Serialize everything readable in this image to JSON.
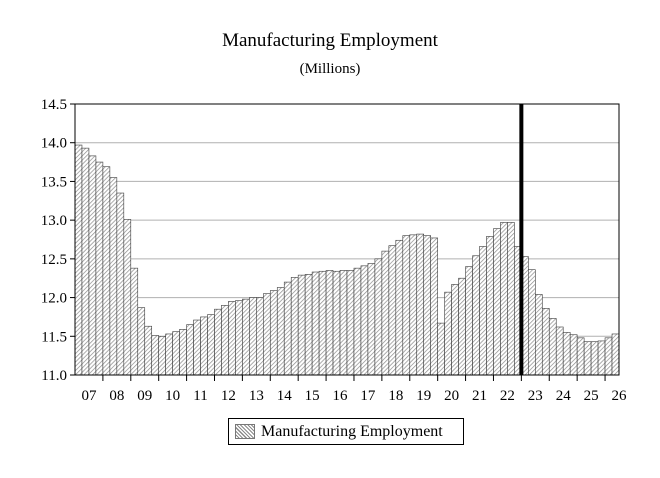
{
  "chart_data": {
    "type": "bar",
    "title": "Manufacturing Employment",
    "subtitle": "(Millions)",
    "xlabel": "",
    "ylabel": "",
    "ylim": [
      11.0,
      14.5
    ],
    "yticks": [
      "14.5",
      "14.0",
      "13.5",
      "13.0",
      "12.5",
      "12.0",
      "11.5",
      "11.0"
    ],
    "ytick_values": [
      14.5,
      14.0,
      13.5,
      13.0,
      12.5,
      12.0,
      11.5,
      11.0
    ],
    "xtick_labels": [
      "07",
      "08",
      "09",
      "10",
      "11",
      "12",
      "13",
      "14",
      "15",
      "16",
      "17",
      "18",
      "19",
      "20",
      "21",
      "22",
      "23",
      "24",
      "25",
      "26"
    ],
    "periods_per_year": 4,
    "grid": "horizontal",
    "legend_position": "bottom",
    "vertical_marker_index": 64,
    "series": [
      {
        "name": "Manufacturing Employment",
        "values": [
          13.97,
          13.93,
          13.83,
          13.75,
          13.69,
          13.55,
          13.35,
          13.01,
          12.38,
          11.87,
          11.63,
          11.51,
          11.5,
          11.53,
          11.56,
          11.59,
          11.65,
          11.71,
          11.75,
          11.78,
          11.85,
          11.9,
          11.95,
          11.96,
          11.98,
          12.0,
          12.0,
          12.05,
          12.09,
          12.13,
          12.2,
          12.26,
          12.29,
          12.3,
          12.33,
          12.34,
          12.35,
          12.34,
          12.35,
          12.35,
          12.38,
          12.41,
          12.44,
          12.5,
          12.6,
          12.67,
          12.74,
          12.8,
          12.81,
          12.82,
          12.8,
          12.77,
          11.67,
          12.07,
          12.17,
          12.25,
          12.4,
          12.54,
          12.66,
          12.79,
          12.89,
          12.97,
          12.97,
          12.66,
          12.53,
          12.36,
          12.04,
          11.86,
          11.73,
          11.62,
          11.55,
          11.52,
          11.48,
          11.43,
          11.43,
          11.44,
          11.48,
          11.53
        ]
      }
    ]
  },
  "colors": {
    "bar_hatch": "#8a8a8a",
    "bar_edge": "#3a3a3a",
    "marker": "#000000",
    "grid": "#b0b0b0"
  }
}
